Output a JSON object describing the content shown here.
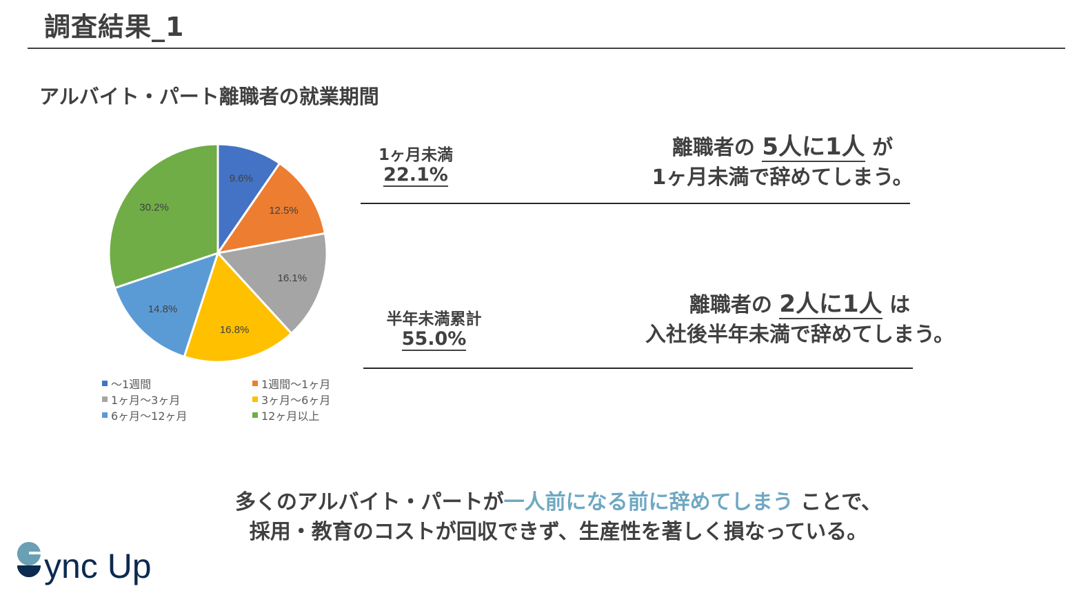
{
  "header": {
    "title": "調査結果_1"
  },
  "section": {
    "subtitle": "アルバイト・パート離職者の就業期間"
  },
  "chart_data": {
    "type": "pie",
    "title": "アルバイト・パート離職者の就業期間",
    "start_angle": "12 o'clock",
    "direction": "clockwise",
    "categories": [
      "〜1週間",
      "1週間〜1ヶ月",
      "1ヶ月〜3ヶ月",
      "3ヶ月〜6ヶ月",
      "6ヶ月〜12ヶ月",
      "12ヶ月以上"
    ],
    "values": [
      9.6,
      12.5,
      16.1,
      16.8,
      14.8,
      30.2
    ],
    "labels": [
      "9.6%",
      "12.5%",
      "16.1%",
      "16.8%",
      "14.8%",
      "30.2%"
    ],
    "colors": [
      "#4472c4",
      "#ed7d31",
      "#a5a5a5",
      "#ffc000",
      "#5b9bd5",
      "#70ad47"
    ],
    "unit": "%",
    "legend_position": "bottom"
  },
  "legend": {
    "items": [
      {
        "label": "〜1週間",
        "color": "#4472c4"
      },
      {
        "label": "1週間〜1ヶ月",
        "color": "#ed7d31"
      },
      {
        "label": "1ヶ月〜3ヶ月",
        "color": "#a5a5a5"
      },
      {
        "label": "3ヶ月〜6ヶ月",
        "color": "#ffc000"
      },
      {
        "label": "6ヶ月〜12ヶ月",
        "color": "#5b9bd5"
      },
      {
        "label": "12ヶ月以上",
        "color": "#70ad47"
      }
    ]
  },
  "stats": [
    {
      "label": "1ヶ月未満",
      "value": "22.1%",
      "message_pre": "離職者の",
      "message_emphasis": "5人に1人",
      "message_post": "が",
      "message_line2": "1ヶ月未満で辞めてしまう。"
    },
    {
      "label": "半年未満累計",
      "value": "55.0%",
      "message_pre": "離職者の",
      "message_emphasis": "2人に1人",
      "message_post": "は",
      "message_line2": "入社後半年未満で辞めてしまう。"
    }
  ],
  "conclusion": {
    "line1_pre": "多くのアルバイト・パートが",
    "line1_highlight": "一人前になる前に辞めてしまう",
    "line1_post": "ことで、",
    "line2": "採用・教育のコストが回収できず、生産性を著しく損なっている。",
    "highlight_color": "#6fa8c2"
  },
  "logo": {
    "text": "Sync Up"
  }
}
